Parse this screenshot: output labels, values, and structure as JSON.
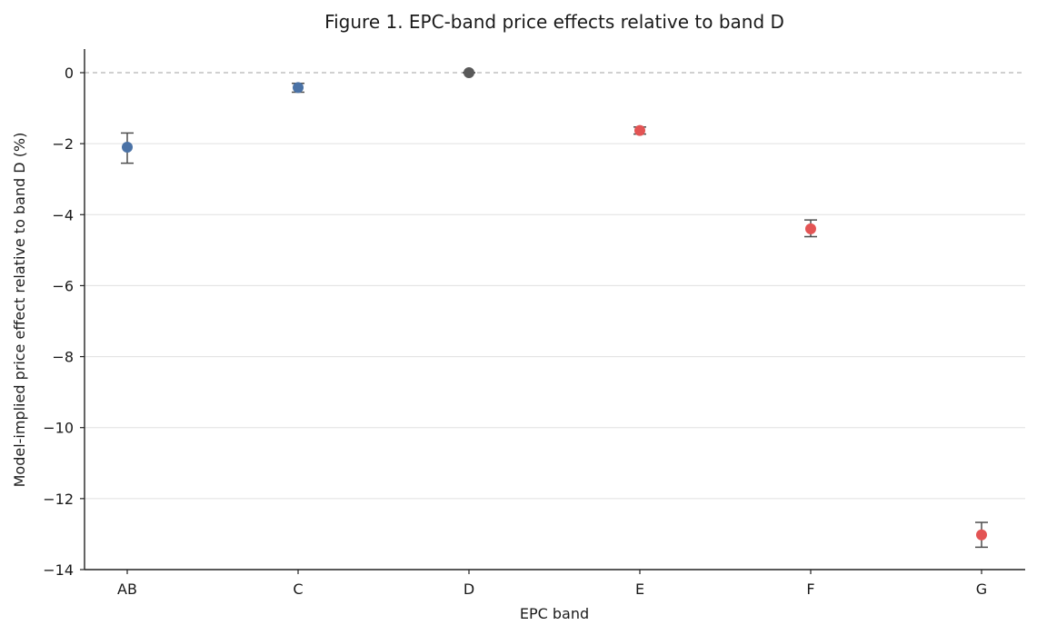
{
  "chart_data": {
    "type": "scatter",
    "title": "Figure 1. EPC-band price effects relative to band D",
    "xlabel": "EPC band",
    "ylabel": "Model-implied price effect relative to band D (%)",
    "categories": [
      "AB",
      "C",
      "D",
      "E",
      "F",
      "G"
    ],
    "ylim": [
      -14,
      0.7
    ],
    "yticks": [
      0,
      -2,
      -4,
      -6,
      -8,
      -10,
      -12,
      -14
    ],
    "ytick_labels": [
      "0",
      "−2",
      "−4",
      "−6",
      "−8",
      "−10",
      "−12",
      "−14"
    ],
    "reference_line": 0,
    "grid": "horizontal",
    "points": [
      {
        "category": "AB",
        "value": -2.1,
        "lower": -2.55,
        "upper": -1.7,
        "color": "#4a72a6"
      },
      {
        "category": "C",
        "value": -0.42,
        "lower": -0.55,
        "upper": -0.3,
        "color": "#4a72a6"
      },
      {
        "category": "D",
        "value": 0.0,
        "lower": 0.0,
        "upper": 0.0,
        "color": "#595959"
      },
      {
        "category": "E",
        "value": -1.63,
        "lower": -1.73,
        "upper": -1.53,
        "color": "#e35454"
      },
      {
        "category": "F",
        "value": -4.4,
        "lower": -4.62,
        "upper": -4.15,
        "color": "#e35454"
      },
      {
        "category": "G",
        "value": -13.02,
        "lower": -13.37,
        "upper": -12.67,
        "color": "#e35454"
      }
    ]
  }
}
